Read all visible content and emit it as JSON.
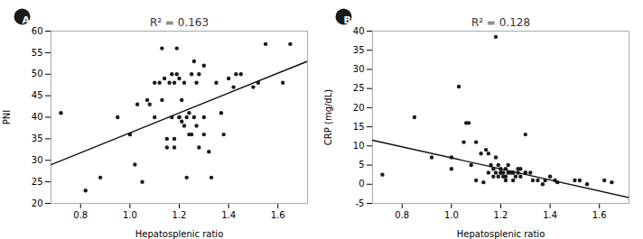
{
  "chart_data": [
    {
      "type": "scatter",
      "annotation": "A",
      "title": "R² = 0.163",
      "xlabel": "Hepatosplenic ratio",
      "ylabel": "PNI",
      "xlim": [
        0.68,
        1.72
      ],
      "ylim": [
        20,
        60
      ],
      "xticks": [
        0.8,
        {
          "value": 1.0,
          "label": "1.0"
        },
        1.2,
        1.4,
        1.6
      ],
      "yticks": [
        20,
        25,
        30,
        35,
        40,
        45,
        50,
        55,
        60
      ],
      "series": [
        {
          "type": "scatter",
          "color": "#1a1a1a",
          "x": [
            0.72,
            0.82,
            0.88,
            0.95,
            1.0,
            1.0,
            1.02,
            1.03,
            1.05,
            1.07,
            1.08,
            1.1,
            1.1,
            1.12,
            1.13,
            1.13,
            1.14,
            1.15,
            1.15,
            1.16,
            1.17,
            1.17,
            1.18,
            1.18,
            1.18,
            1.19,
            1.19,
            1.2,
            1.2,
            1.2,
            1.21,
            1.21,
            1.22,
            1.22,
            1.23,
            1.23,
            1.24,
            1.24,
            1.25,
            1.25,
            1.26,
            1.26,
            1.27,
            1.27,
            1.28,
            1.28,
            1.3,
            1.3,
            1.3,
            1.32,
            1.33,
            1.35,
            1.37,
            1.38,
            1.4,
            1.42,
            1.43,
            1.45,
            1.5,
            1.52,
            1.55,
            1.62,
            1.65
          ],
          "values": [
            41,
            23,
            26,
            40,
            36,
            36,
            29,
            43,
            25,
            44,
            43,
            48,
            40,
            48,
            44,
            56,
            49,
            33,
            35,
            48,
            40,
            50,
            33,
            35,
            48,
            50,
            56,
            40,
            40,
            49,
            39,
            44,
            38,
            48,
            26,
            40,
            36,
            41,
            36,
            50,
            40,
            53,
            38,
            48,
            33,
            50,
            36,
            40,
            52,
            32,
            26,
            48,
            41,
            36,
            49,
            47,
            50,
            50,
            47,
            48,
            57,
            48,
            57
          ]
        },
        {
          "type": "line",
          "color": "#111111",
          "x": [
            0.68,
            1.72
          ],
          "values": [
            29.0,
            53.0
          ]
        }
      ]
    },
    {
      "type": "scatter",
      "annotation": "B",
      "title": "R² = 0.128",
      "xlabel": "Hepatosplenic ratio",
      "ylabel": "CRP (mg/dL)",
      "xlim": [
        0.68,
        1.72
      ],
      "ylim": [
        -5,
        40
      ],
      "xticks": [
        0.8,
        {
          "value": 1.0,
          "label": "1.0"
        },
        1.2,
        1.4,
        1.6
      ],
      "yticks": [
        -5,
        0,
        5,
        10,
        15,
        20,
        25,
        30,
        35,
        40
      ],
      "series": [
        {
          "type": "scatter",
          "color": "#1a1a1a",
          "x": [
            0.72,
            0.85,
            0.92,
            1.0,
            1.0,
            1.03,
            1.05,
            1.06,
            1.07,
            1.08,
            1.1,
            1.1,
            1.12,
            1.13,
            1.14,
            1.15,
            1.15,
            1.16,
            1.17,
            1.17,
            1.18,
            1.18,
            1.18,
            1.19,
            1.19,
            1.2,
            1.2,
            1.2,
            1.21,
            1.21,
            1.22,
            1.22,
            1.22,
            1.23,
            1.23,
            1.24,
            1.25,
            1.25,
            1.25,
            1.26,
            1.27,
            1.27,
            1.28,
            1.28,
            1.3,
            1.3,
            1.3,
            1.32,
            1.33,
            1.35,
            1.37,
            1.38,
            1.4,
            1.42,
            1.43,
            1.5,
            1.52,
            1.55,
            1.62,
            1.65
          ],
          "values": [
            2.5,
            17.5,
            7,
            4,
            7,
            25.5,
            11,
            16,
            16,
            5,
            1,
            11,
            8,
            0.5,
            9,
            3,
            8,
            5,
            2,
            4,
            38.5,
            3,
            7,
            2,
            5,
            3,
            4,
            3,
            2,
            3,
            1,
            2,
            4,
            3,
            5,
            3,
            1,
            3,
            3,
            2,
            3,
            4,
            2,
            4,
            13,
            3,
            3,
            3,
            1,
            1,
            0,
            1,
            2,
            1,
            0.5,
            1,
            1,
            0,
            1,
            0.5
          ]
        },
        {
          "type": "line",
          "color": "#111111",
          "x": [
            0.68,
            1.72
          ],
          "values": [
            11.5,
            -3.5
          ]
        }
      ]
    }
  ]
}
